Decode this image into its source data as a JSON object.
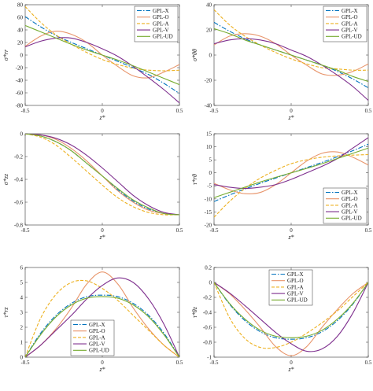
{
  "series_styles": [
    {
      "name": "GPL-X",
      "color": "#0072BD",
      "dash": "6,2,1.5,2"
    },
    {
      "name": "GPL-O",
      "color": "#E8956B",
      "dash": ""
    },
    {
      "name": "GPL-A",
      "color": "#EDB120",
      "dash": "4,2"
    },
    {
      "name": "GPL-V",
      "color": "#7E2F8E",
      "dash": ""
    },
    {
      "name": "GPL-UD",
      "color": "#77AC30",
      "dash": ""
    }
  ],
  "chart_data": [
    {
      "type": "line",
      "ylabel": "σ*rr",
      "xlabel": "z*",
      "xlim": [
        -0.5,
        0.5
      ],
      "ylim": [
        -80,
        80
      ],
      "xticks": [
        "-0.5",
        "0",
        "0.5"
      ],
      "yticks": [
        "-80",
        "-60",
        "-40",
        "-20",
        "0",
        "20",
        "40",
        "60",
        "80"
      ],
      "legend": "top-right",
      "x": [
        -0.5,
        -0.4,
        -0.3,
        -0.2,
        -0.1,
        0,
        0.1,
        0.2,
        0.3,
        0.4,
        0.5
      ],
      "series": [
        {
          "name": "GPL-X",
          "values": [
            61,
            45,
            31,
            20,
            10,
            0,
            -10,
            -20,
            -31,
            -45,
            -61
          ]
        },
        {
          "name": "GPL-O",
          "values": [
            14,
            30,
            38,
            33,
            20,
            0,
            -18,
            -33,
            -36,
            -27,
            -15
          ]
        },
        {
          "name": "GPL-A",
          "values": [
            77,
            52,
            32,
            17,
            4,
            -7,
            -15,
            -21,
            -24,
            -25,
            -24
          ]
        },
        {
          "name": "GPL-V",
          "values": [
            13,
            22,
            27,
            27,
            20,
            10,
            -2,
            -18,
            -36,
            -55,
            -76
          ]
        },
        {
          "name": "GPL-UD",
          "values": [
            47,
            37,
            27,
            17,
            8,
            0,
            -8,
            -17,
            -27,
            -37,
            -47
          ]
        }
      ]
    },
    {
      "type": "line",
      "ylabel": "σ*θθ",
      "xlabel": "z*",
      "xlim": [
        -0.5,
        0.5
      ],
      "ylim": [
        -40,
        40
      ],
      "xticks": [
        "-0.5",
        "0",
        "0.5"
      ],
      "yticks": [
        "-40",
        "-20",
        "0",
        "20",
        "40"
      ],
      "legend": "top-right",
      "x": [
        -0.5,
        -0.4,
        -0.3,
        -0.2,
        -0.1,
        0,
        0.1,
        0.2,
        0.3,
        0.4,
        0.5
      ],
      "series": [
        {
          "name": "GPL-X",
          "values": [
            26,
            19,
            13,
            8,
            4,
            0,
            -4,
            -8,
            -13,
            -19,
            -26
          ]
        },
        {
          "name": "GPL-O",
          "values": [
            8,
            15,
            17,
            15,
            9,
            0,
            -8,
            -15,
            -16,
            -13,
            -7
          ]
        },
        {
          "name": "GPL-A",
          "values": [
            36,
            24,
            15,
            8,
            2,
            -3,
            -7,
            -10,
            -11,
            -12,
            -12
          ]
        },
        {
          "name": "GPL-V",
          "values": [
            9,
            12,
            13,
            12,
            9,
            4,
            -1,
            -8,
            -16,
            -25,
            -36
          ]
        },
        {
          "name": "GPL-UD",
          "values": [
            21,
            17,
            12,
            8,
            4,
            0,
            -4,
            -8,
            -12,
            -17,
            -21
          ]
        }
      ]
    },
    {
      "type": "line",
      "ylabel": "σ*zz",
      "xlabel": "z*",
      "xlim": [
        -0.5,
        0.5
      ],
      "ylim": [
        -0.8,
        0
      ],
      "xticks": [
        "-0.5",
        "0",
        "0.5"
      ],
      "yticks": [
        "-0.8",
        "-0.6",
        "-0.4",
        "-0.2",
        "0"
      ],
      "legend": "none",
      "x": [
        -0.5,
        -0.4,
        -0.3,
        -0.2,
        -0.1,
        0,
        0.1,
        0.2,
        0.3,
        0.4,
        0.5
      ],
      "series": [
        {
          "name": "GPL-X",
          "values": [
            0,
            -0.02,
            -0.07,
            -0.15,
            -0.26,
            -0.37,
            -0.49,
            -0.59,
            -0.66,
            -0.7,
            -0.71
          ]
        },
        {
          "name": "GPL-O",
          "values": [
            0,
            -0.01,
            -0.05,
            -0.13,
            -0.24,
            -0.37,
            -0.5,
            -0.6,
            -0.67,
            -0.7,
            -0.71
          ]
        },
        {
          "name": "GPL-A",
          "values": [
            0,
            -0.03,
            -0.1,
            -0.21,
            -0.33,
            -0.45,
            -0.56,
            -0.64,
            -0.69,
            -0.71,
            -0.71
          ]
        },
        {
          "name": "GPL-V",
          "values": [
            0,
            -0.01,
            -0.04,
            -0.1,
            -0.19,
            -0.3,
            -0.42,
            -0.54,
            -0.63,
            -0.69,
            -0.71
          ]
        },
        {
          "name": "GPL-UD",
          "values": [
            0,
            -0.02,
            -0.07,
            -0.15,
            -0.26,
            -0.37,
            -0.48,
            -0.58,
            -0.65,
            -0.7,
            -0.71
          ]
        }
      ]
    },
    {
      "type": "line",
      "ylabel": "τ*rθ",
      "xlabel": "z*",
      "xlim": [
        -0.5,
        0.5
      ],
      "ylim": [
        -20,
        15
      ],
      "xticks": [
        "-0.5",
        "0",
        "0.5"
      ],
      "yticks": [
        "-20",
        "-15",
        "-10",
        "-5",
        "0",
        "5",
        "10",
        "15"
      ],
      "legend": "bottom-right",
      "x": [
        -0.5,
        -0.4,
        -0.3,
        -0.2,
        -0.1,
        0,
        0.1,
        0.2,
        0.3,
        0.4,
        0.5
      ],
      "series": [
        {
          "name": "GPL-X",
          "values": [
            -11,
            -8.5,
            -6.2,
            -4.0,
            -2.0,
            0,
            2.0,
            4.0,
            6.2,
            8.5,
            11
          ]
        },
        {
          "name": "GPL-O",
          "values": [
            -4.0,
            -6.5,
            -8.0,
            -7.5,
            -4.5,
            0,
            4.5,
            7.5,
            8.0,
            6.0,
            3.0
          ]
        },
        {
          "name": "GPL-A",
          "values": [
            -17,
            -11,
            -6.0,
            -2.0,
            1.0,
            3.5,
            5.0,
            6.0,
            6.5,
            6.8,
            7.0
          ]
        },
        {
          "name": "GPL-V",
          "values": [
            -4.5,
            -5.5,
            -6.0,
            -5.5,
            -4.5,
            -2.5,
            0,
            2.5,
            5.5,
            9.5,
            13.5
          ]
        },
        {
          "name": "GPL-UD",
          "values": [
            -9.5,
            -7.5,
            -5.5,
            -3.5,
            -1.7,
            0,
            1.7,
            3.5,
            5.5,
            7.5,
            9.5
          ]
        }
      ]
    },
    {
      "type": "line",
      "ylabel": "τ*rz",
      "xlabel": "z*",
      "xlim": [
        -0.5,
        0.5
      ],
      "ylim": [
        0,
        6
      ],
      "xticks": [
        "-0.5",
        "0",
        "0.5"
      ],
      "yticks": [
        "0",
        "1",
        "2",
        "3",
        "4",
        "5",
        "6"
      ],
      "legend": "bottom-left",
      "x": [
        -0.5,
        -0.4,
        -0.3,
        -0.2,
        -0.1,
        0,
        0.1,
        0.2,
        0.3,
        0.4,
        0.5
      ],
      "series": [
        {
          "name": "GPL-X",
          "values": [
            0,
            1.6,
            2.8,
            3.6,
            4.05,
            4.15,
            4.05,
            3.6,
            2.8,
            1.6,
            0
          ]
        },
        {
          "name": "GPL-O",
          "values": [
            0,
            0.8,
            1.9,
            3.3,
            4.9,
            5.7,
            4.9,
            3.3,
            1.9,
            0.8,
            0
          ]
        },
        {
          "name": "GPL-A",
          "values": [
            0,
            2.6,
            4.2,
            5.0,
            5.1,
            4.6,
            3.8,
            2.8,
            1.8,
            0.8,
            0
          ]
        },
        {
          "name": "GPL-V",
          "values": [
            0,
            0.8,
            1.8,
            2.8,
            3.9,
            4.8,
            5.3,
            5.0,
            3.9,
            2.2,
            0
          ]
        },
        {
          "name": "GPL-UD",
          "values": [
            0,
            1.5,
            2.7,
            3.5,
            3.95,
            4.05,
            3.95,
            3.5,
            2.7,
            1.5,
            0
          ]
        }
      ]
    },
    {
      "type": "line",
      "ylabel": "τ*θz",
      "xlabel": "z*",
      "xlim": [
        -0.5,
        0.5
      ],
      "ylim": [
        -1,
        0.2
      ],
      "xticks": [
        "-0.5",
        "0",
        "0.5"
      ],
      "yticks": [
        "-1",
        "-0.8",
        "-0.6",
        "-0.4",
        "-0.2",
        "0",
        "0.2"
      ],
      "legend": "top-left",
      "x": [
        -0.5,
        -0.4,
        -0.3,
        -0.2,
        -0.1,
        0,
        0.1,
        0.2,
        0.3,
        0.4,
        0.5
      ],
      "series": [
        {
          "name": "GPL-X",
          "values": [
            0,
            -0.29,
            -0.51,
            -0.66,
            -0.74,
            -0.76,
            -0.74,
            -0.66,
            -0.51,
            -0.29,
            0
          ]
        },
        {
          "name": "GPL-O",
          "values": [
            0,
            -0.15,
            -0.36,
            -0.6,
            -0.86,
            -0.98,
            -0.86,
            -0.6,
            -0.36,
            -0.15,
            0
          ]
        },
        {
          "name": "GPL-A",
          "values": [
            0,
            -0.47,
            -0.75,
            -0.87,
            -0.87,
            -0.8,
            -0.68,
            -0.54,
            -0.38,
            -0.19,
            0
          ]
        },
        {
          "name": "GPL-V",
          "values": [
            0,
            -0.14,
            -0.31,
            -0.49,
            -0.67,
            -0.82,
            -0.92,
            -0.89,
            -0.72,
            -0.41,
            0
          ]
        },
        {
          "name": "GPL-UD",
          "values": [
            0,
            -0.28,
            -0.49,
            -0.64,
            -0.72,
            -0.74,
            -0.72,
            -0.64,
            -0.49,
            -0.28,
            0
          ]
        }
      ]
    }
  ]
}
